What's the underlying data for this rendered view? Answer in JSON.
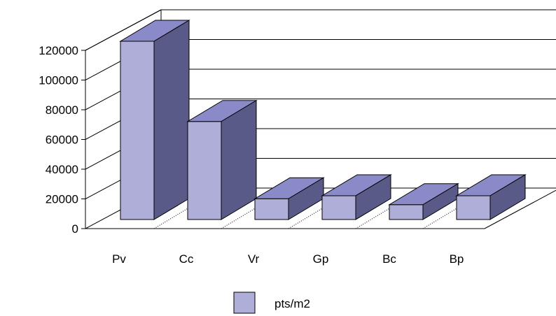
{
  "chart_data": {
    "type": "bar",
    "style": "3d",
    "title": "",
    "xlabel": "",
    "ylabel": "",
    "categories": [
      "Pv",
      "Cc",
      "Vr",
      "Gp",
      "Bc",
      "Bp"
    ],
    "series": [
      {
        "name": "pts/m2",
        "values": [
          120000,
          66000,
          14000,
          16000,
          10000,
          16000
        ]
      }
    ],
    "ylim": [
      0,
      120000
    ],
    "yticks": [
      0,
      20000,
      40000,
      60000,
      80000,
      100000,
      120000
    ],
    "ytick_labels": [
      "0",
      "20000",
      "40000",
      "60000",
      "80000",
      "100000",
      "120000"
    ],
    "grid": true,
    "legend_position": "bottom",
    "colors": {
      "bar_front": "#aeaed8",
      "bar_top": "#8a8ac8",
      "bar_side": "#5a5a88",
      "outline": "#000000",
      "grid": "#000000",
      "background": "#ffffff"
    }
  }
}
